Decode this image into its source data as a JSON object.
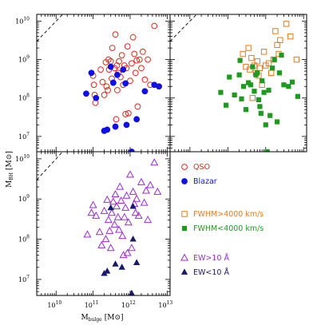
{
  "chart_data": [
    {
      "type": "scatter",
      "panel": "top-left",
      "xscale": "log",
      "yscale": "log",
      "xlim": [
        3000000000.0,
        12000000000000.0
      ],
      "ylim": [
        4000000.0,
        15000000000.0
      ],
      "reference_line": "y = x",
      "series": [
        {
          "name": "QSO",
          "marker": "open-circle",
          "color": "#e8261c",
          "points": [
            [
              100000000000.0,
              380000000.0
            ],
            [
              105000000000.0,
              220000000.0
            ],
            [
              110000000000.0,
              120000000.0
            ],
            [
              115000000000.0,
              75000000.0
            ],
            [
              160000000000.0,
              550000000.0
            ],
            [
              180000000000.0,
              260000000.0
            ],
            [
              200000000000.0,
              120000000.0
            ],
            [
              220000000000.0,
              850000000.0
            ],
            [
              230000000000.0,
              200000000.0
            ],
            [
              250000000000.0,
              160000000.0
            ],
            [
              270000000000.0,
              550000000.0
            ],
            [
              300000000000.0,
              900000000.0
            ],
            [
              320000000000.0,
              320000000.0
            ],
            [
              350000000000.0,
              250000000.0
            ],
            [
              380000000000.0,
              600000000.0
            ],
            [
              400000000000.0,
              4500000000.0
            ],
            [
              420000000000.0,
              28000000.0
            ],
            [
              450000000000.0,
              160000000.0
            ],
            [
              480000000000.0,
              450000000.0
            ],
            [
              500000000000.0,
              900000000.0
            ],
            [
              550000000000.0,
              350000000.0
            ],
            [
              600000000000.0,
              1300000000.0
            ],
            [
              650000000000.0,
              220000000.0
            ],
            [
              700000000000.0,
              700000000.0
            ],
            [
              750000000000.0,
              38000000.0
            ],
            [
              800000000000.0,
              600000000.0
            ],
            [
              900000000000.0,
              40000000.0
            ],
            [
              1000000000000.0,
              280000000.0
            ],
            [
              1100000000000.0,
              800000000.0
            ],
            [
              1200000000000.0,
              3800000000.0
            ],
            [
              1300000000000.0,
              1400000000.0
            ],
            [
              1400000000000.0,
              450000000.0
            ],
            [
              1500000000000.0,
              950000000.0
            ],
            [
              1600000000000.0,
              60000000.0
            ],
            [
              1800000000000.0,
              1000000000.0
            ],
            [
              2000000000000.0,
              600000000.0
            ],
            [
              2200000000000.0,
              1600000000.0
            ],
            [
              2500000000000.0,
              300000000.0
            ],
            [
              3000000000000.0,
              1000000000.0
            ],
            [
              3500000000000.0,
              220000000.0
            ],
            [
              4500000000000.0,
              7500000000.0
            ],
            [
              6000000000000.0,
              200000000.0
            ],
            [
              260000000000.0,
              1000000000.0
            ],
            [
              330000000000.0,
              2000000000.0
            ],
            [
              440000000000.0,
              700000000.0
            ],
            [
              850000000000.0,
              2200000000.0
            ]
          ]
        },
        {
          "name": "Blazar",
          "marker": "filled-circle",
          "color": "#1010e6",
          "points": [
            [
              90000000000.0,
              450000000.0
            ],
            [
              65000000000.0,
              130000000.0
            ],
            [
              120000000000.0,
              100000000.0
            ],
            [
              200000000000.0,
              14000000.0
            ],
            [
              240000000000.0,
              15000000.0
            ],
            [
              300000000000.0,
              650000000.0
            ],
            [
              350000000000.0,
              250000000.0
            ],
            [
              400000000000.0,
              18000000.0
            ],
            [
              450000000000.0,
              400000000.0
            ],
            [
              650000000000.0,
              550000000.0
            ],
            [
              750000000000.0,
              240000000.0
            ],
            [
              800000000000.0,
              20000000.0
            ],
            [
              1100000000000.0,
              4000000.0
            ],
            [
              1500000000000.0,
              28000000.0
            ],
            [
              2500000000000.0,
              150000000.0
            ],
            [
              4500000000000.0,
              220000000.0
            ],
            [
              6000000000000.0,
              200000000.0
            ]
          ]
        }
      ]
    },
    {
      "type": "scatter",
      "panel": "top-right",
      "xscale": "log",
      "yscale": "log",
      "xlim": [
        3000000000.0,
        12000000000000.0
      ],
      "ylim": [
        4000000.0,
        15000000000.0
      ],
      "reference_line": "y = x",
      "series": [
        {
          "name": "FWHM>4000 km/s",
          "marker": "open-square",
          "color": "#e87a1a",
          "points": [
            [
              250000000000.0,
              1400000000.0
            ],
            [
              300000000000.0,
              650000000.0
            ],
            [
              350000000000.0,
              2000000000.0
            ],
            [
              380000000000.0,
              550000000.0
            ],
            [
              420000000000.0,
              1100000000.0
            ],
            [
              450000000000.0,
              100000000.0
            ],
            [
              500000000000.0,
              700000000.0
            ],
            [
              550000000000.0,
              450000000.0
            ],
            [
              600000000000.0,
              900000000.0
            ],
            [
              650000000000.0,
              380000000.0
            ],
            [
              700000000000.0,
              600000000.0
            ],
            [
              800000000000.0,
              220000000.0
            ],
            [
              900000000000.0,
              1600000000.0
            ],
            [
              1000000000000.0,
              700000000.0
            ],
            [
              1200000000000.0,
              800000000.0
            ],
            [
              1400000000000.0,
              450000000.0
            ],
            [
              1600000000000.0,
              1000000000.0
            ],
            [
              2000000000000.0,
              2400000000.0
            ],
            [
              2400000000000.0,
              3200000000.0
            ],
            [
              3500000000000.0,
              8500000000.0
            ],
            [
              4500000000000.0,
              4000000000.0
            ],
            [
              6500000000000.0,
              1000000000.0
            ],
            [
              1800000000000.0,
              5500000000.0
            ],
            [
              2200000000000.0,
              1400000000.0
            ]
          ]
        },
        {
          "name": "FWHM<4000 km/s",
          "marker": "filled-square",
          "color": "#1e9a1e",
          "points": [
            [
              65000000000.0,
              140000000.0
            ],
            [
              90000000000.0,
              65000000.0
            ],
            [
              110000000000.0,
              350000000.0
            ],
            [
              150000000000.0,
              120000000.0
            ],
            [
              200000000000.0,
              400000000.0
            ],
            [
              230000000000.0,
              95000000.0
            ],
            [
              260000000000.0,
              200000000.0
            ],
            [
              300000000000.0,
              50000000.0
            ],
            [
              350000000000.0,
              250000000.0
            ],
            [
              400000000000.0,
              220000000.0
            ],
            [
              450000000000.0,
              650000000.0
            ],
            [
              500000000000.0,
              150000000.0
            ],
            [
              550000000000.0,
              400000000.0
            ],
            [
              600000000000.0,
              450000000.0
            ],
            [
              650000000000.0,
              90000000.0
            ],
            [
              700000000000.0,
              60000000.0
            ],
            [
              750000000000.0,
              40000000.0
            ],
            [
              800000000000.0,
              280000000.0
            ],
            [
              900000000000.0,
              140000000.0
            ],
            [
              1000000000000.0,
              20000000.0
            ],
            [
              1100000000000.0,
              4000000.0
            ],
            [
              1200000000000.0,
              160000000.0
            ],
            [
              1300000000000.0,
              35000000.0
            ],
            [
              1500000000000.0,
              600000000.0
            ],
            [
              1700000000000.0,
              1000000000.0
            ],
            [
              2000000000000.0,
              24000000.0
            ],
            [
              2300000000000.0,
              450000000.0
            ],
            [
              2600000000000.0,
              1300000000.0
            ],
            [
              3000000000000.0,
              220000000.0
            ],
            [
              4000000000000.0,
              200000000.0
            ],
            [
              5000000000000.0,
              260000000.0
            ],
            [
              210000000000.0,
              950000000.0
            ],
            [
              7000000000000.0,
              110000000.0
            ]
          ]
        }
      ]
    },
    {
      "type": "scatter",
      "panel": "bottom-left",
      "xscale": "log",
      "yscale": "log",
      "xlim": [
        3000000000.0,
        12000000000000.0
      ],
      "ylim": [
        4000000.0,
        15000000000.0
      ],
      "xlabel": "M_bulge [M⊙]",
      "ylabel": "M_BH [M⊙]",
      "x_ticks": [
        "10^10",
        "10^11",
        "10^12",
        "10^13"
      ],
      "y_ticks": [
        "10^7",
        "10^8",
        "10^9",
        "10^10"
      ],
      "reference_line": "y = x",
      "series": [
        {
          "name": "EW>10 Å",
          "marker": "open-triangle",
          "color": "#9a2ad6",
          "points": [
            [
              70000000000.0,
              130000000.0
            ],
            [
              90000000000.0,
              450000000.0
            ],
            [
              100000000000.0,
              700000000.0
            ],
            [
              120000000000.0,
              380000000.0
            ],
            [
              150000000000.0,
              150000000.0
            ],
            [
              170000000000.0,
              70000000.0
            ],
            [
              200000000000.0,
              500000000.0
            ],
            [
              220000000000.0,
              100000000.0
            ],
            [
              240000000000.0,
              950000000.0
            ],
            [
              260000000000.0,
              300000000.0
            ],
            [
              280000000000.0,
              160000000.0
            ],
            [
              300000000000.0,
              60000000.0
            ],
            [
              320000000000.0,
              450000000.0
            ],
            [
              350000000000.0,
              850000000.0
            ],
            [
              380000000000.0,
              230000000.0
            ],
            [
              400000000000.0,
              1300000000.0
            ],
            [
              430000000000.0,
              650000000.0
            ],
            [
              470000000000.0,
              350000000.0
            ],
            [
              500000000000.0,
              170000000.0
            ],
            [
              530000000000.0,
              2000000000.0
            ],
            [
              570000000000.0,
              900000000.0
            ],
            [
              620000000000.0,
              120000000.0
            ],
            [
              660000000000.0,
              40000000.0
            ],
            [
              700000000000.0,
              350000000.0
            ],
            [
              750000000000.0,
              600000000.0
            ],
            [
              800000000000.0,
              1200000000.0
            ],
            [
              850000000000.0,
              45000000.0
            ],
            [
              900000000000.0,
              260000000.0
            ],
            [
              1000000000000.0,
              4000000000.0
            ],
            [
              1100000000000.0,
              60000000.0
            ],
            [
              1200000000000.0,
              1500000000.0
            ],
            [
              1300000000000.0,
              750000000.0
            ],
            [
              1400000000000.0,
              450000000.0
            ],
            [
              1500000000000.0,
              1000000000.0
            ],
            [
              1700000000000.0,
              380000000.0
            ],
            [
              2000000000000.0,
              2600000000.0
            ],
            [
              2400000000000.0,
              800000000.0
            ],
            [
              2700000000000.0,
              1600000000.0
            ],
            [
              3000000000000.0,
              300000000.0
            ],
            [
              3500000000000.0,
              2200000000.0
            ],
            [
              4500000000000.0,
              8000000000.0
            ],
            [
              5500000000000.0,
              1500000000.0
            ]
          ]
        },
        {
          "name": "EW<10 Å",
          "marker": "filled-triangle",
          "color": "#1a1a6a",
          "points": [
            [
              200000000000.0,
              14000000.0
            ],
            [
              240000000000.0,
              16000000.0
            ],
            [
              300000000000.0,
              600000000.0
            ],
            [
              400000000000.0,
              24000000.0
            ],
            [
              600000000000.0,
              20000000.0
            ],
            [
              1100000000000.0,
              4500000.0
            ],
            [
              1200000000000.0,
              100000000.0
            ],
            [
              1500000000000.0,
              26000000.0
            ],
            [
              1200000000000.0,
              650000000.0
            ]
          ]
        }
      ]
    }
  ],
  "legend": [
    {
      "label": "QSO",
      "marker": "open-circle",
      "color": "#e8261c"
    },
    {
      "label": "Blazar",
      "marker": "filled-circle",
      "color": "#1010e6"
    },
    {
      "label": "FWHM>4000 km/s",
      "marker": "open-square",
      "color": "#e87a1a"
    },
    {
      "label": "FWHM<4000 km/s",
      "marker": "filled-square",
      "color": "#1e9a1e"
    },
    {
      "label": "EW>10 Å",
      "marker": "open-triangle",
      "color": "#9a2ad6"
    },
    {
      "label": "EW<10 Å",
      "marker": "filled-triangle",
      "color": "#1a1a6a"
    }
  ],
  "labels": {
    "y_main": "M",
    "y_sub": "BH",
    "y_unit": "[M⊙]",
    "x_main": "M",
    "x_sub": "bulge",
    "x_unit": "[M⊙]"
  }
}
